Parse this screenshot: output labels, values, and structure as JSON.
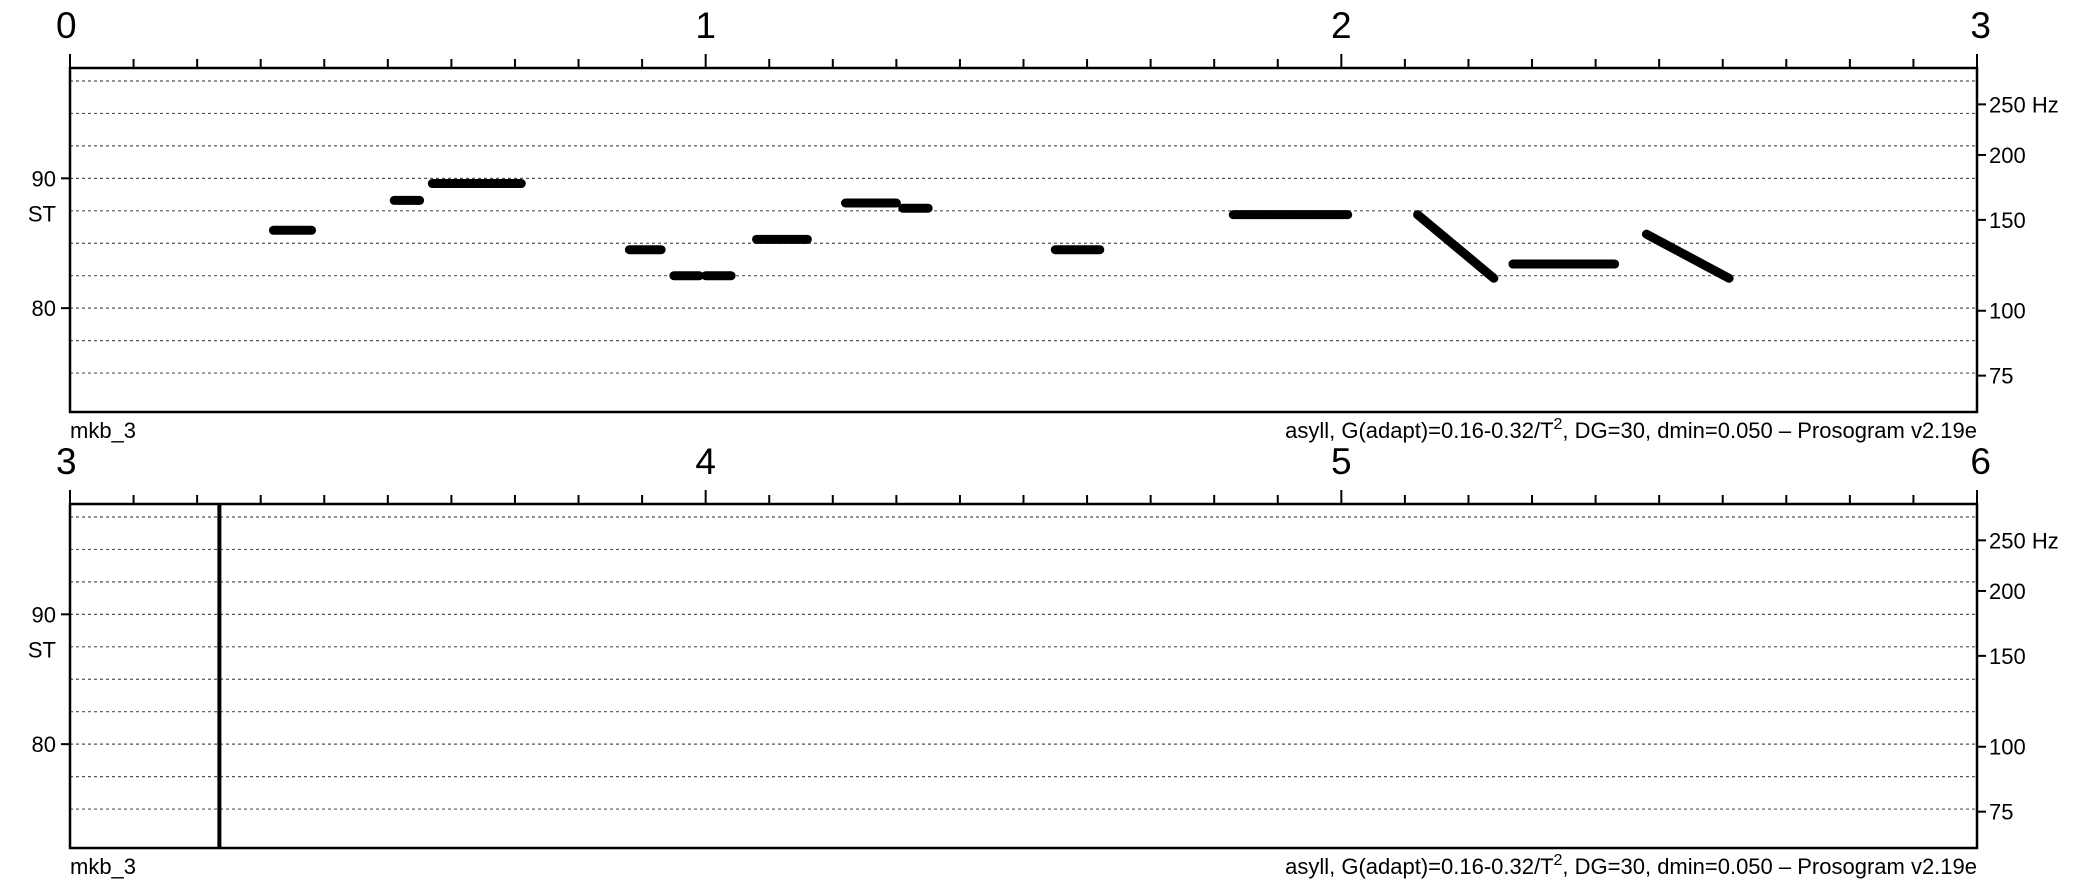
{
  "chart_data": [
    {
      "type": "line",
      "file_label": "mkb_3",
      "caption": {
        "prefix": "asyll, G(adapt)=0.16-0.32/T",
        "superscript": "2",
        "suffix": ", DG=30, dmin=0.050 – Prosogram v2.19e"
      },
      "xlim": [
        0,
        3
      ],
      "x_tick_labels": [
        "0",
        "1",
        "2",
        "3"
      ],
      "ylim": [
        72,
        98.5
      ],
      "y_st_ticks": [
        {
          "value": 90,
          "label": "90"
        },
        {
          "value": 80,
          "label": "80"
        }
      ],
      "y_unit_label": "ST",
      "y_hz_ticks": [
        {
          "value": 95.7,
          "label": "250 Hz"
        },
        {
          "value": 91.8,
          "label": "200"
        },
        {
          "value": 86.8,
          "label": "150"
        },
        {
          "value": 79.8,
          "label": "100"
        },
        {
          "value": 74.8,
          "label": "75"
        }
      ],
      "segments": [
        {
          "x": [
            0.32,
            0.38
          ],
          "y": [
            86.0,
            86.0
          ]
        },
        {
          "x": [
            0.51,
            0.55
          ],
          "y": [
            88.3,
            88.3
          ]
        },
        {
          "x": [
            0.57,
            0.71
          ],
          "y": [
            89.6,
            89.6
          ]
        },
        {
          "x": [
            0.88,
            0.93
          ],
          "y": [
            84.5,
            84.5
          ]
        },
        {
          "x": [
            0.95,
            0.99
          ],
          "y": [
            82.5,
            82.5
          ]
        },
        {
          "x": [
            1.0,
            1.04
          ],
          "y": [
            82.5,
            82.5
          ]
        },
        {
          "x": [
            1.08,
            1.16
          ],
          "y": [
            85.3,
            85.3
          ]
        },
        {
          "x": [
            1.22,
            1.3
          ],
          "y": [
            88.1,
            88.1
          ]
        },
        {
          "x": [
            1.31,
            1.35
          ],
          "y": [
            87.7,
            87.7
          ]
        },
        {
          "x": [
            1.55,
            1.62
          ],
          "y": [
            84.5,
            84.5
          ]
        },
        {
          "x": [
            1.83,
            2.01
          ],
          "y": [
            87.2,
            87.2
          ]
        },
        {
          "x": [
            2.12,
            2.24
          ],
          "y": [
            87.2,
            82.3
          ]
        },
        {
          "x": [
            2.27,
            2.43
          ],
          "y": [
            83.4,
            83.4
          ]
        },
        {
          "x": [
            2.48,
            2.61
          ],
          "y": [
            85.7,
            82.3
          ]
        }
      ],
      "markers": []
    },
    {
      "type": "line",
      "file_label": "mkb_3",
      "caption": {
        "prefix": "asyll, G(adapt)=0.16-0.32/T",
        "superscript": "2",
        "suffix": ", DG=30, dmin=0.050 – Prosogram v2.19e"
      },
      "xlim": [
        3,
        6
      ],
      "x_tick_labels": [
        "3",
        "4",
        "5",
        "6"
      ],
      "ylim": [
        72,
        98.5
      ],
      "y_st_ticks": [
        {
          "value": 90,
          "label": "90"
        },
        {
          "value": 80,
          "label": "80"
        }
      ],
      "y_unit_label": "ST",
      "y_hz_ticks": [
        {
          "value": 95.7,
          "label": "250 Hz"
        },
        {
          "value": 91.8,
          "label": "200"
        },
        {
          "value": 86.8,
          "label": "150"
        },
        {
          "value": 79.8,
          "label": "100"
        },
        {
          "value": 74.8,
          "label": "75"
        }
      ],
      "segments": [],
      "markers": [
        3.235
      ]
    }
  ]
}
